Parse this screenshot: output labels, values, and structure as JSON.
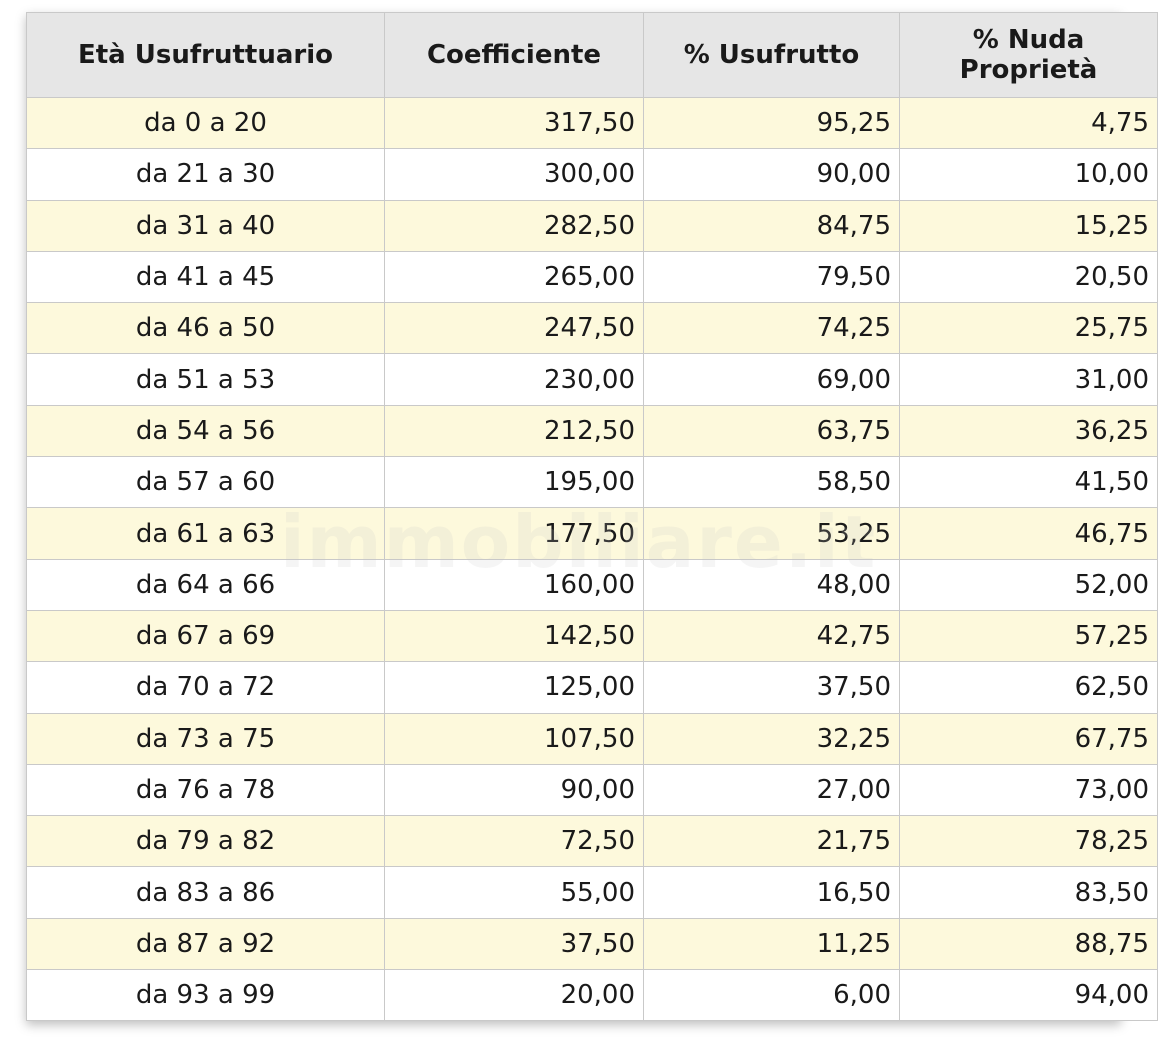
{
  "watermark": "immobiliare.it",
  "colors": {
    "header_bg": "#e6e6e6",
    "odd_row_bg": "#fdf9dc",
    "even_row_bg": "#ffffff",
    "border": "#c9c9c9"
  },
  "table": {
    "headers": [
      "Età Usufruttuario",
      "Coefficiente",
      "% Usufrutto",
      "% Nuda Proprietà"
    ],
    "rows": [
      [
        "da 0 a 20",
        "317,50",
        "95,25",
        "4,75"
      ],
      [
        "da 21 a 30",
        "300,00",
        "90,00",
        "10,00"
      ],
      [
        "da 31 a 40",
        "282,50",
        "84,75",
        "15,25"
      ],
      [
        "da 41 a 45",
        "265,00",
        "79,50",
        "20,50"
      ],
      [
        "da 46 a 50",
        "247,50",
        "74,25",
        "25,75"
      ],
      [
        "da 51 a 53",
        "230,00",
        "69,00",
        "31,00"
      ],
      [
        "da 54 a 56",
        "212,50",
        "63,75",
        "36,25"
      ],
      [
        "da 57 a 60",
        "195,00",
        "58,50",
        "41,50"
      ],
      [
        "da 61 a 63",
        "177,50",
        "53,25",
        "46,75"
      ],
      [
        "da 64 a 66",
        "160,00",
        "48,00",
        "52,00"
      ],
      [
        "da 67 a 69",
        "142,50",
        "42,75",
        "57,25"
      ],
      [
        "da 70 a 72",
        "125,00",
        "37,50",
        "62,50"
      ],
      [
        "da 73 a 75",
        "107,50",
        "32,25",
        "67,75"
      ],
      [
        "da 76 a 78",
        "90,00",
        "27,00",
        "73,00"
      ],
      [
        "da 79 a 82",
        "72,50",
        "21,75",
        "78,25"
      ],
      [
        "da 83 a 86",
        "55,00",
        "16,50",
        "83,50"
      ],
      [
        "da 87 a 92",
        "37,50",
        "11,25",
        "88,75"
      ],
      [
        "da 93 a 99",
        "20,00",
        "6,00",
        "94,00"
      ]
    ]
  }
}
